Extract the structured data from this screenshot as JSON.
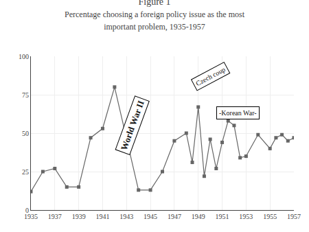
{
  "chart_data": {
    "type": "line",
    "title": "Figure 1",
    "subtitle": [
      "Percentage choosing a foreign policy issue as the most",
      "important problem, 1935-1957"
    ],
    "x": [
      1935,
      1936,
      1937,
      1938,
      1939,
      1940,
      1941,
      1942,
      1944,
      1945,
      1946,
      1947,
      1948,
      1948.5,
      1949,
      1949.5,
      1950,
      1950.5,
      1951,
      1951.5,
      1952,
      1952.5,
      1953,
      1954,
      1955,
      1955.5,
      1956,
      1956.5,
      1957
    ],
    "values": [
      12,
      25,
      27,
      15,
      15,
      47,
      53,
      80,
      13,
      13,
      25,
      45,
      50,
      31,
      67,
      22,
      46,
      27,
      44,
      58,
      55,
      34,
      35,
      49,
      40,
      47,
      49,
      45,
      47
    ],
    "xlim": [
      1935,
      1957
    ],
    "ylim": [
      0,
      100
    ],
    "xticks": [
      1935,
      1937,
      1939,
      1941,
      1943,
      1945,
      1947,
      1949,
      1951,
      1953,
      1955,
      1957
    ],
    "yticks": [
      0,
      25,
      50,
      75,
      100
    ],
    "color": "#666666",
    "marker": "square",
    "grid": true,
    "annotations": [
      {
        "text": "World War II",
        "x": 1943.5,
        "y": 55
      },
      {
        "text": "Czech coup",
        "x": 1950.0,
        "y": 87
      },
      {
        "text": "-Korean War-",
        "x": 1952.3,
        "y": 63
      }
    ]
  }
}
